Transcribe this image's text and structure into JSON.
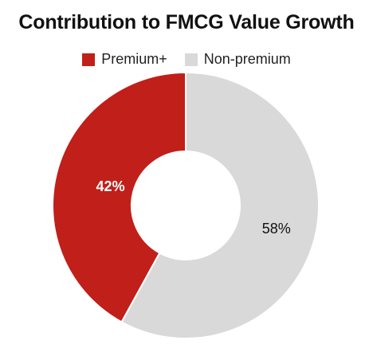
{
  "chart_data": {
    "type": "pie",
    "title": "Contribution to FMCG Value Growth",
    "categories": [
      "Premium+",
      "Non-premium"
    ],
    "values": [
      42,
      58
    ],
    "labels": [
      "42%",
      "58%"
    ],
    "colors": [
      "#C11F1A",
      "#D9D9D9"
    ],
    "label_colors": [
      "#ffffff",
      "#111111"
    ],
    "donut": true,
    "legend_position": "top"
  }
}
